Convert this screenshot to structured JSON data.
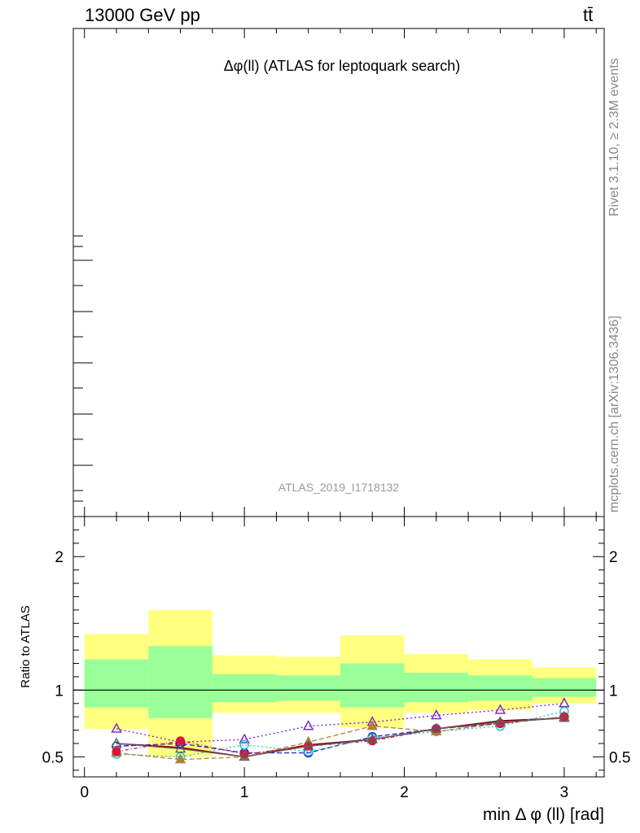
{
  "header": {
    "energy_label": "13000 GeV pp",
    "process_label": "tt̄",
    "rivet_label": "Rivet 3.1.10, ≥ 2.3M events",
    "mcplots_label": "mcplots.cern.ch [arXiv:1306.3436]"
  },
  "chart_data": {
    "type": "line",
    "title": "Δφ(ll) (ATLAS for leptoquark search)",
    "analysis_label": "ATLAS_2019_I1718132",
    "xlabel": "min Δ φ (ll) [rad]",
    "ylabel": "Ratio to ATLAS",
    "xlim": [
      -0.07,
      3.25
    ],
    "ylim": [
      0.35,
      2.3
    ],
    "x_ticks": [
      "0",
      "1",
      "2",
      "3"
    ],
    "y_ticks": [
      "0.5",
      "1",
      "2"
    ],
    "reference_line": 1,
    "bins": [
      [
        0,
        0.4
      ],
      [
        0.4,
        0.8
      ],
      [
        0.8,
        1.2
      ],
      [
        1.2,
        1.6
      ],
      [
        1.6,
        2.0
      ],
      [
        2.0,
        2.4
      ],
      [
        2.4,
        2.8
      ],
      [
        2.8,
        3.2
      ]
    ],
    "band_yellow": [
      [
        0.71,
        1.42
      ],
      [
        0.5,
        1.6
      ],
      [
        0.83,
        1.26
      ],
      [
        0.83,
        1.25
      ],
      [
        0.72,
        1.41
      ],
      [
        0.83,
        1.27
      ],
      [
        0.85,
        1.23
      ],
      [
        0.9,
        1.17
      ]
    ],
    "band_green": [
      [
        0.87,
        1.23
      ],
      [
        0.79,
        1.33
      ],
      [
        0.91,
        1.12
      ],
      [
        0.92,
        1.11
      ],
      [
        0.87,
        1.2
      ],
      [
        0.91,
        1.13
      ],
      [
        0.92,
        1.11
      ],
      [
        0.95,
        1.09
      ]
    ],
    "band_colors": {
      "yellow": "#ffff80",
      "green": "#99ff99"
    },
    "x": [
      0.2,
      0.6,
      1.0,
      1.4,
      1.8,
      2.2,
      2.6,
      3.0
    ],
    "series": [
      {
        "color": "#8b0000",
        "marker": "none",
        "dash": "",
        "values": [
          0.6,
          0.57,
          0.5,
          0.59,
          0.63,
          0.71,
          0.77,
          0.79
        ]
      },
      {
        "color": "#7a1fc0",
        "marker": "triangle-open",
        "dash": "2,3",
        "values": [
          0.71,
          0.61,
          0.63,
          0.73,
          0.76,
          0.81,
          0.85,
          0.9
        ]
      },
      {
        "color": "#1a1acc",
        "marker": "circle-open",
        "dash": "6,3",
        "values": [
          0.58,
          0.6,
          0.53,
          0.53,
          0.65,
          0.71,
          0.75,
          0.8
        ]
      },
      {
        "color": "#20c8c8",
        "marker": "circle-open",
        "dash": "2,3",
        "values": [
          0.52,
          0.5,
          0.59,
          0.54,
          0.64,
          0.69,
          0.73,
          0.84
        ]
      },
      {
        "color": "#b08040",
        "marker": "triangle-filled",
        "dash": "6,3",
        "values": [
          0.53,
          0.48,
          0.5,
          0.61,
          0.73,
          0.69,
          0.75,
          0.8
        ]
      },
      {
        "color": "#dc143c",
        "marker": "circle-filled",
        "dash": "4,3,1,3",
        "values": [
          0.54,
          0.62,
          0.52,
          0.58,
          0.62,
          0.71,
          0.75,
          0.8
        ]
      },
      {
        "color": "#606060",
        "marker": "triangle-open",
        "dash": "",
        "values": [
          0.6,
          0.56,
          0.5,
          0.58,
          0.63,
          0.71,
          0.76,
          0.79
        ]
      }
    ]
  }
}
